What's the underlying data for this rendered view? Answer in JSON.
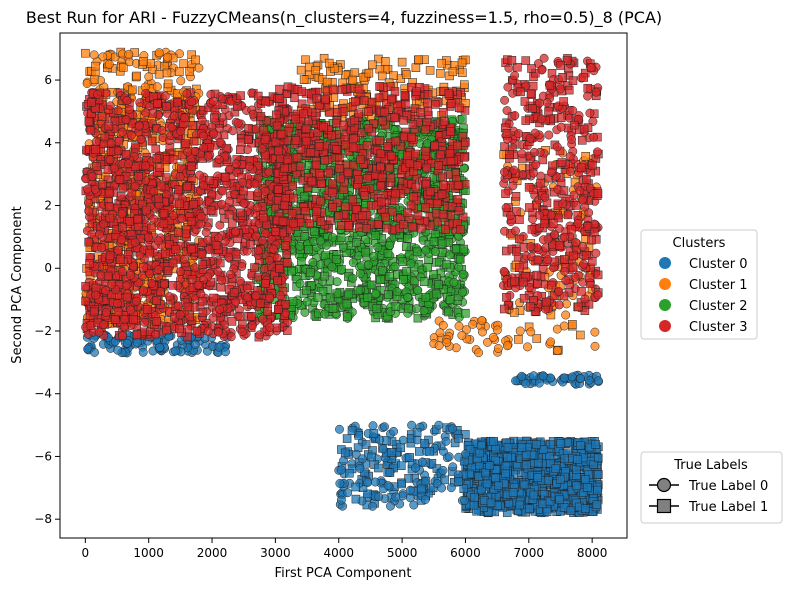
{
  "chart_data": {
    "type": "scatter",
    "title": "Best Run for ARI - FuzzyCMeans(n_clusters=4, fuzziness=1.5, rho=0.5)_8 (PCA)",
    "xlabel": "First PCA Component",
    "ylabel": "Second PCA Component",
    "xlim": [
      -400,
      8550
    ],
    "ylim": [
      -8.6,
      7.5
    ],
    "x_ticks": [
      0,
      1000,
      2000,
      3000,
      4000,
      5000,
      6000,
      7000,
      8000
    ],
    "y_ticks": [
      -8,
      -6,
      -4,
      -2,
      0,
      2,
      4,
      6
    ],
    "x_tick_labels": [
      "0",
      "1000",
      "2000",
      "3000",
      "4000",
      "5000",
      "6000",
      "7000",
      "8000"
    ],
    "y_tick_labels": [
      "−8",
      "−6",
      "−4",
      "−2",
      "0",
      "2",
      "4",
      "6"
    ],
    "grid": false,
    "legend_clusters": {
      "title": "Clusters",
      "placement": "right",
      "entries": [
        {
          "label": "Cluster 0",
          "color": "#1f77b4"
        },
        {
          "label": "Cluster 1",
          "color": "#ff7f0e"
        },
        {
          "label": "Cluster 2",
          "color": "#2ca02c"
        },
        {
          "label": "Cluster 3",
          "color": "#d62728"
        }
      ]
    },
    "legend_labels": {
      "title": "True Labels",
      "placement": "lower-right",
      "entries": [
        {
          "label": "True Label 0",
          "marker": "circle"
        },
        {
          "label": "True Label 1",
          "marker": "square"
        }
      ]
    },
    "series": [
      {
        "cluster": 0,
        "color": "#1f77b4",
        "regions": [
          {
            "x": [
              6000,
              8100
            ],
            "y": [
              -7.8,
              -5.5
            ],
            "density": 900,
            "marker": "square"
          },
          {
            "x": [
              4000,
              6000
            ],
            "y": [
              -7.6,
              -5.0
            ],
            "density": 220,
            "marker": "mixed"
          },
          {
            "x": [
              0,
              2300
            ],
            "y": [
              -2.7,
              -2.1
            ],
            "density": 110,
            "marker": "circle"
          },
          {
            "x": [
              6700,
              8100
            ],
            "y": [
              -3.7,
              -3.4
            ],
            "density": 50,
            "marker": "circle"
          }
        ]
      },
      {
        "cluster": 1,
        "color": "#ff7f0e",
        "regions": [
          {
            "x": [
              0,
              1800
            ],
            "y": [
              -1.8,
              6.9
            ],
            "density": 700,
            "marker": "mixed"
          },
          {
            "x": [
              3400,
              6000
            ],
            "y": [
              4.8,
              6.7
            ],
            "density": 140,
            "marker": "square"
          },
          {
            "x": [
              6600,
              8100
            ],
            "y": [
              -2.7,
              3.8
            ],
            "density": 110,
            "marker": "mixed"
          },
          {
            "x": [
              5500,
              6700
            ],
            "y": [
              -2.7,
              -1.6
            ],
            "density": 40,
            "marker": "circle"
          }
        ]
      },
      {
        "cluster": 2,
        "color": "#2ca02c",
        "regions": [
          {
            "x": [
              2700,
              6000
            ],
            "y": [
              -1.6,
              4.8
            ],
            "density": 1500,
            "marker": "mixed"
          }
        ]
      },
      {
        "cluster": 3,
        "color": "#d62728",
        "regions": [
          {
            "x": [
              0,
              3200
            ],
            "y": [
              -2.2,
              5.6
            ],
            "density": 1600,
            "marker": "mixed"
          },
          {
            "x": [
              3000,
              6000
            ],
            "y": [
              1.2,
              5.8
            ],
            "density": 600,
            "marker": "square"
          },
          {
            "x": [
              6600,
              8100
            ],
            "y": [
              -1.4,
              6.7
            ],
            "density": 500,
            "marker": "mixed"
          }
        ]
      }
    ]
  }
}
